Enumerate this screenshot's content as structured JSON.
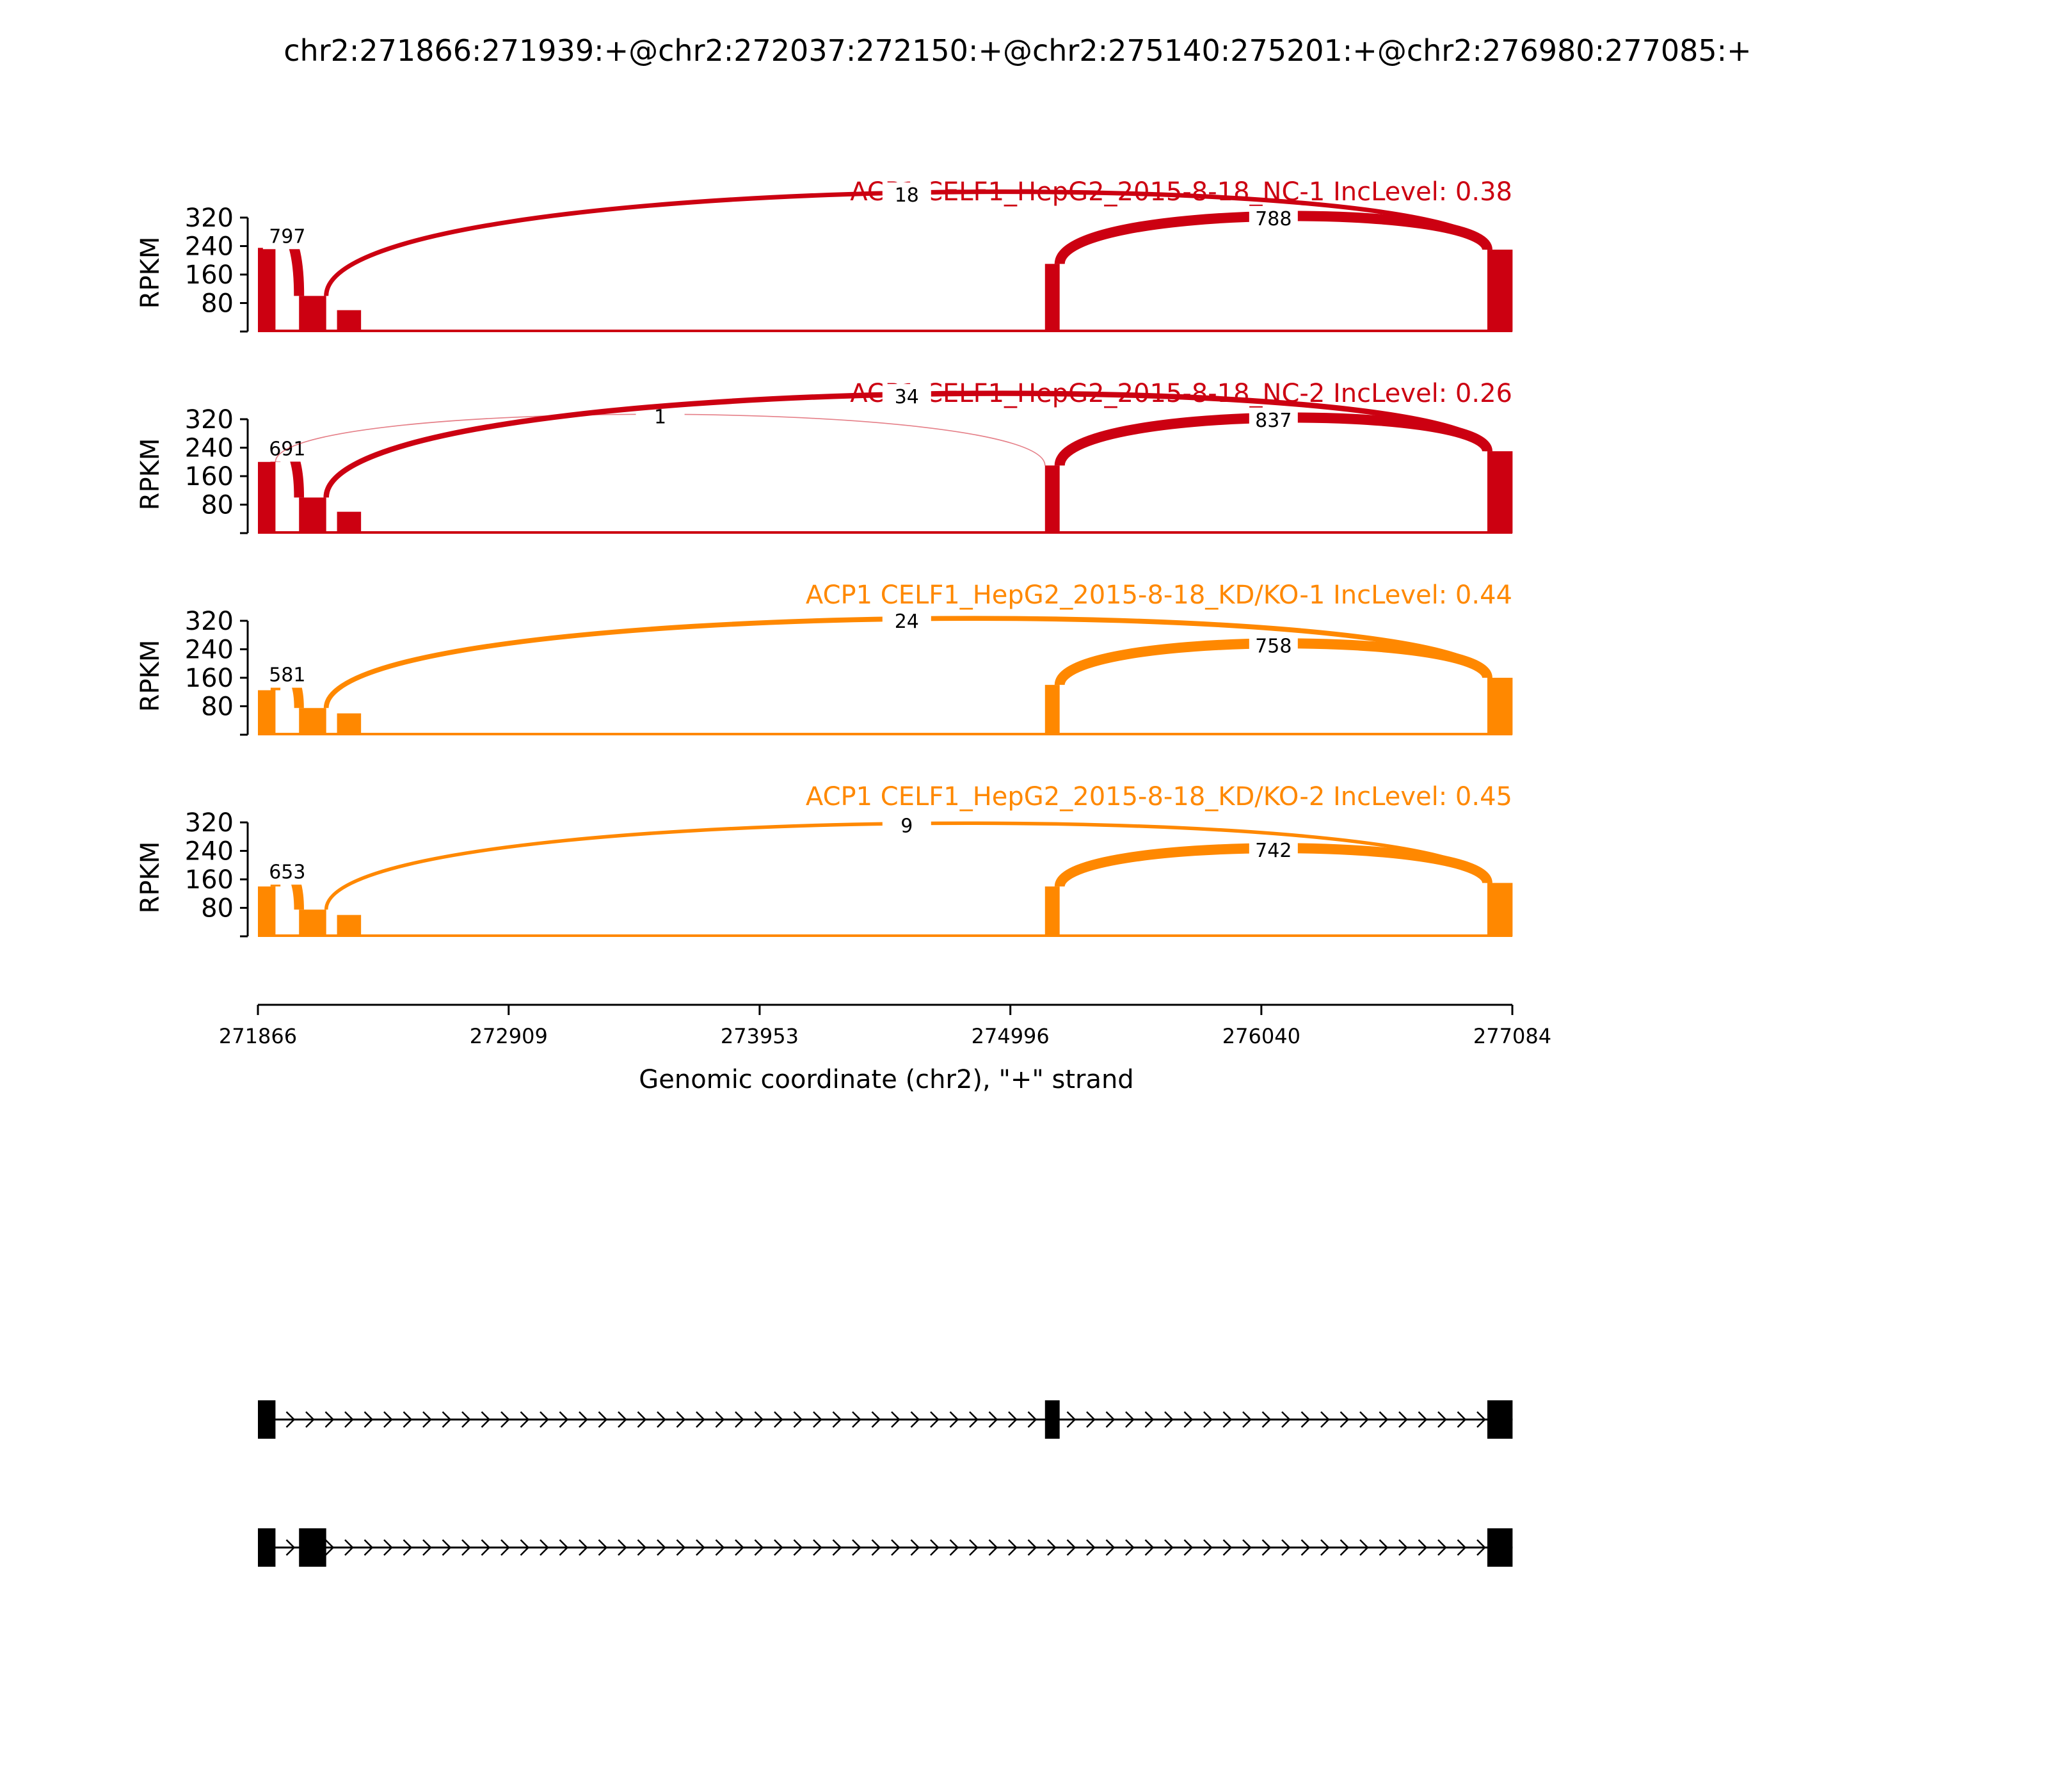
{
  "chart_data": {
    "type": "sashimi",
    "title": "chr2:271866:271939:+@chr2:272037:272150:+@chr2:275140:275201:+@chr2:276980:277085:+",
    "xlabel": "Genomic coordinate (chr2), \"+\" strand",
    "ylabel": "RPKM",
    "xlim": [
      271866,
      277084
    ],
    "xticks": [
      271866,
      272909,
      273953,
      274996,
      276040,
      277084
    ],
    "yticks": [
      80,
      160,
      240,
      320
    ],
    "ylim": [
      0,
      320
    ],
    "colors": {
      "nc": "#cc0011",
      "kd": "#ff8800"
    },
    "exons": [
      [
        271866,
        271939
      ],
      [
        272037,
        272150
      ],
      [
        275140,
        275201
      ],
      [
        276980,
        277085
      ]
    ],
    "panels": [
      {
        "title": "ACP1 CELF1_HepG2_2015-8-18_NC-1 IncLevel: 0.38",
        "color": "#cc0011",
        "coverage": [
          {
            "start": 271866,
            "end": 271939,
            "level": 235
          },
          {
            "start": 272037,
            "end": 272150,
            "level": 100
          },
          {
            "start": 272195,
            "end": 272295,
            "level": 60
          },
          {
            "start": 275140,
            "end": 275201,
            "level": 190
          },
          {
            "start": 276980,
            "end": 277085,
            "level": 230
          }
        ],
        "junctions": [
          {
            "from": 271939,
            "to": 272037,
            "count": "797"
          },
          {
            "from": 272150,
            "to": 276980,
            "count": "18"
          },
          {
            "from": 275201,
            "to": 276980,
            "count": "788"
          }
        ]
      },
      {
        "title": "ACP1 CELF1_HepG2_2015-8-18_NC-2 IncLevel: 0.26",
        "color": "#cc0011",
        "coverage": [
          {
            "start": 271866,
            "end": 271939,
            "level": 200
          },
          {
            "start": 272037,
            "end": 272150,
            "level": 100
          },
          {
            "start": 272195,
            "end": 272295,
            "level": 60
          },
          {
            "start": 275140,
            "end": 275201,
            "level": 190
          },
          {
            "start": 276980,
            "end": 277085,
            "level": 230
          }
        ],
        "junctions": [
          {
            "from": 271939,
            "to": 272037,
            "count": "691"
          },
          {
            "from": 271939,
            "to": 275140,
            "count": "1"
          },
          {
            "from": 272150,
            "to": 276980,
            "count": "34"
          },
          {
            "from": 275201,
            "to": 276980,
            "count": "837"
          }
        ]
      },
      {
        "title": "ACP1 CELF1_HepG2_2015-8-18_KD/KO-1 IncLevel: 0.44",
        "color": "#ff8800",
        "coverage": [
          {
            "start": 271866,
            "end": 271939,
            "level": 125
          },
          {
            "start": 272037,
            "end": 272150,
            "level": 75
          },
          {
            "start": 272195,
            "end": 272295,
            "level": 60
          },
          {
            "start": 275140,
            "end": 275201,
            "level": 140
          },
          {
            "start": 276980,
            "end": 277085,
            "level": 160
          }
        ],
        "junctions": [
          {
            "from": 271939,
            "to": 272037,
            "count": "581"
          },
          {
            "from": 272150,
            "to": 276980,
            "count": "24"
          },
          {
            "from": 275201,
            "to": 276980,
            "count": "758"
          }
        ]
      },
      {
        "title": "ACP1 CELF1_HepG2_2015-8-18_KD/KO-2 IncLevel: 0.45",
        "color": "#ff8800",
        "coverage": [
          {
            "start": 271866,
            "end": 271939,
            "level": 140
          },
          {
            "start": 272037,
            "end": 272150,
            "level": 75
          },
          {
            "start": 272195,
            "end": 272295,
            "level": 60
          },
          {
            "start": 275140,
            "end": 275201,
            "level": 140
          },
          {
            "start": 276980,
            "end": 277085,
            "level": 150
          }
        ],
        "junctions": [
          {
            "from": 271939,
            "to": 272037,
            "count": "653"
          },
          {
            "from": 272150,
            "to": 276980,
            "count": "9"
          },
          {
            "from": 275201,
            "to": 276980,
            "count": "742"
          }
        ]
      }
    ],
    "isoforms": [
      {
        "exons": [
          [
            271866,
            271939
          ],
          [
            275140,
            275201
          ],
          [
            276980,
            277085
          ]
        ]
      },
      {
        "exons": [
          [
            271866,
            271939
          ],
          [
            272037,
            272150
          ],
          [
            276980,
            277085
          ]
        ]
      }
    ]
  }
}
